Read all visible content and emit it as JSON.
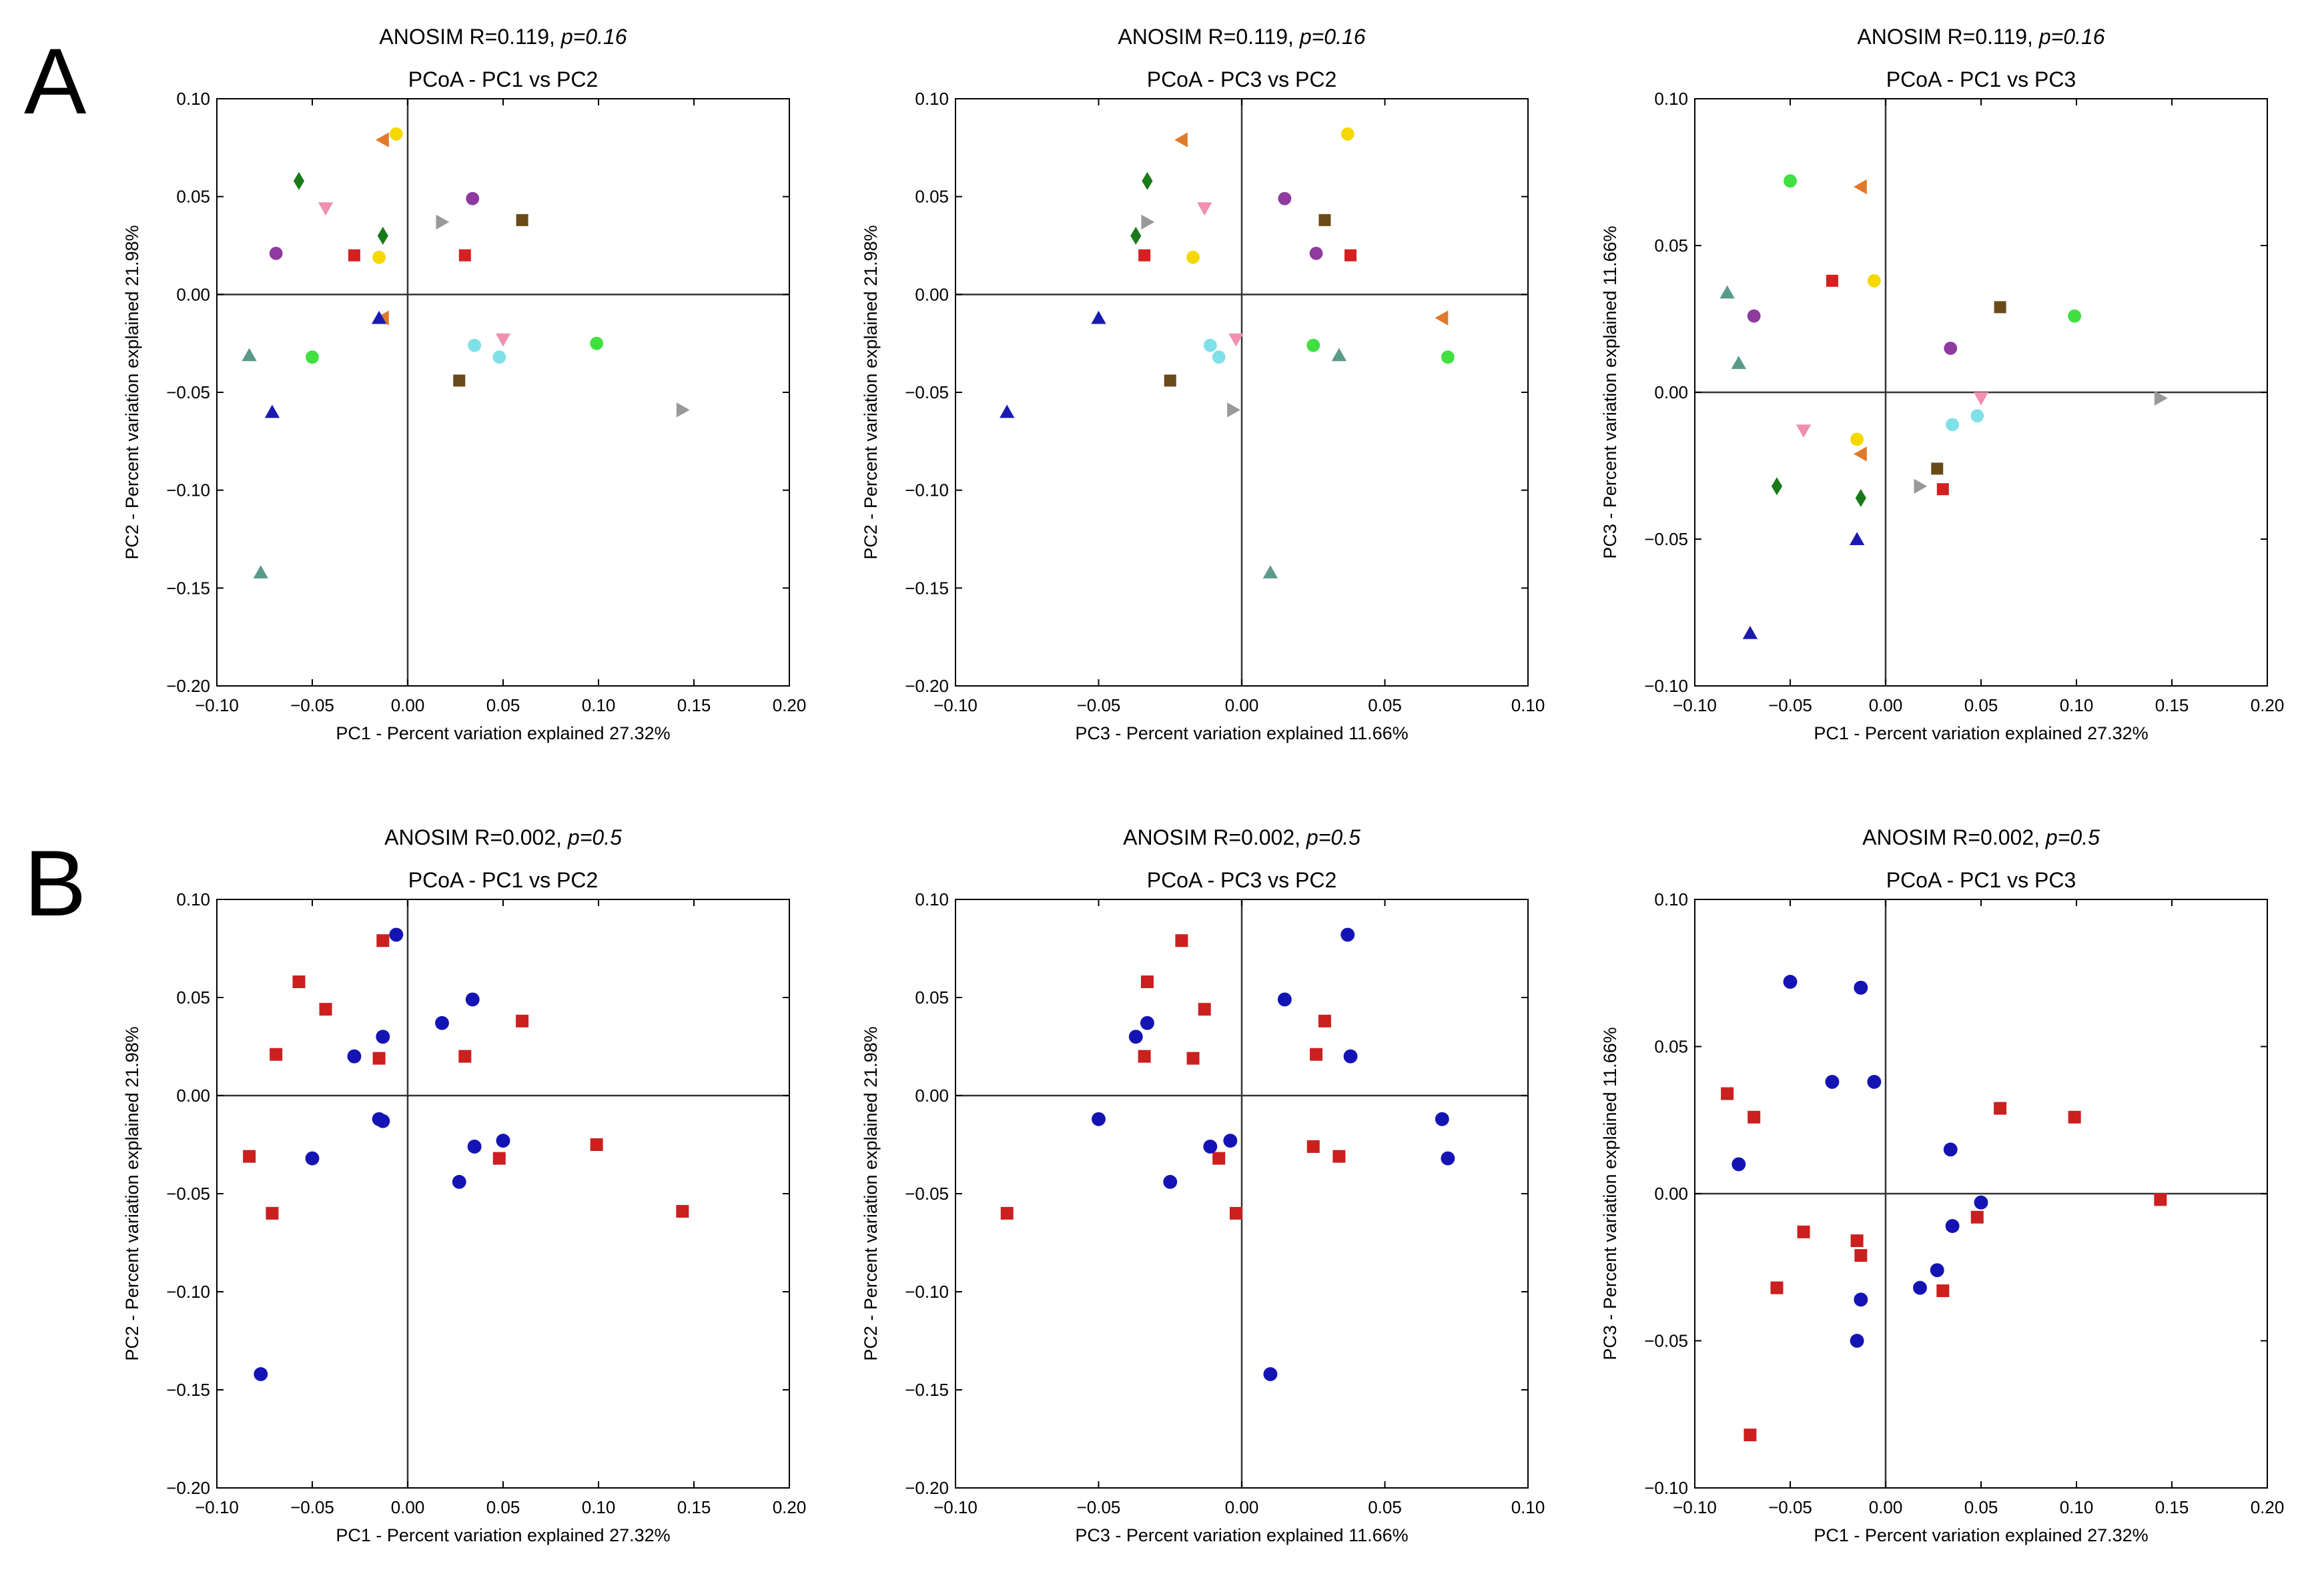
{
  "panel_labels": {
    "a": "A",
    "b": "B"
  },
  "chart_data": [
    {
      "panel": "A",
      "type": "scatter",
      "grouping": "samples",
      "subtitle": {
        "prefix": "ANOSIM R=0.119, ",
        "p": "p=0.16"
      },
      "title": "PCoA - PC1 vs PC2",
      "xlabel": "PC1 - Percent variation explained 27.32%",
      "ylabel": "PC2 - Percent variation explained 21.98%",
      "xlim": [
        -0.1,
        0.2
      ],
      "ylim": [
        -0.2,
        0.1
      ],
      "xticks": [
        "−0.10",
        "−0.05",
        "0.00",
        "0.05",
        "0.10",
        "0.15",
        "0.20"
      ],
      "yticks": [
        "0.10",
        "0.05",
        "0.00",
        "−0.05",
        "−0.10",
        "−0.15",
        "−0.20"
      ],
      "zero_lines": true,
      "points": [
        {
          "x": -0.057,
          "y": 0.058,
          "color": "#1a7a1a",
          "marker": "diamond"
        },
        {
          "x": -0.013,
          "y": 0.03,
          "color": "#1a7a1a",
          "marker": "diamond"
        },
        {
          "x": -0.043,
          "y": 0.044,
          "color": "#f08fb0",
          "marker": "tri-down"
        },
        {
          "x": 0.05,
          "y": -0.023,
          "color": "#f08fb0",
          "marker": "tri-down"
        },
        {
          "x": -0.069,
          "y": 0.021,
          "color": "#8e3a9e",
          "marker": "circle"
        },
        {
          "x": 0.034,
          "y": 0.049,
          "color": "#8e3a9e",
          "marker": "circle"
        },
        {
          "x": -0.013,
          "y": 0.079,
          "color": "#e07a2a",
          "marker": "tri-left"
        },
        {
          "x": -0.013,
          "y": -0.012,
          "color": "#e07a2a",
          "marker": "tri-left"
        },
        {
          "x": -0.006,
          "y": 0.082,
          "color": "#f5d800",
          "marker": "circle"
        },
        {
          "x": -0.015,
          "y": 0.019,
          "color": "#f5d800",
          "marker": "circle"
        },
        {
          "x": -0.028,
          "y": 0.02,
          "color": "#d42020",
          "marker": "square"
        },
        {
          "x": 0.03,
          "y": 0.02,
          "color": "#d42020",
          "marker": "square"
        },
        {
          "x": 0.018,
          "y": 0.037,
          "color": "#999999",
          "marker": "tri-right"
        },
        {
          "x": 0.144,
          "y": -0.059,
          "color": "#999999",
          "marker": "tri-right"
        },
        {
          "x": 0.06,
          "y": 0.038,
          "color": "#6b4a1a",
          "marker": "square"
        },
        {
          "x": 0.027,
          "y": -0.044,
          "color": "#6b4a1a",
          "marker": "square"
        },
        {
          "x": -0.083,
          "y": -0.031,
          "color": "#5a9a8a",
          "marker": "triangle"
        },
        {
          "x": -0.077,
          "y": -0.142,
          "color": "#5a9a8a",
          "marker": "triangle"
        },
        {
          "x": -0.05,
          "y": -0.032,
          "color": "#3fe03f",
          "marker": "circle"
        },
        {
          "x": 0.099,
          "y": -0.025,
          "color": "#3fe03f",
          "marker": "circle"
        },
        {
          "x": 0.035,
          "y": -0.026,
          "color": "#7fe0e8",
          "marker": "circle"
        },
        {
          "x": 0.048,
          "y": -0.032,
          "color": "#7fe0e8",
          "marker": "circle"
        },
        {
          "x": -0.071,
          "y": -0.06,
          "color": "#1a1ab0",
          "marker": "triangle"
        },
        {
          "x": -0.015,
          "y": -0.012,
          "color": "#1a1ab0",
          "marker": "triangle"
        }
      ]
    },
    {
      "panel": "A",
      "type": "scatter",
      "grouping": "samples",
      "subtitle": {
        "prefix": "ANOSIM R=0.119, ",
        "p": "p=0.16"
      },
      "title": "PCoA - PC3 vs PC2",
      "xlabel": "PC3 - Percent variation explained 11.66%",
      "ylabel": "PC2 - Percent variation explained 21.98%",
      "xlim": [
        -0.1,
        0.1
      ],
      "ylim": [
        -0.2,
        0.1
      ],
      "xticks": [
        "−0.10",
        "−0.05",
        "0.00",
        "0.05",
        "0.10"
      ],
      "yticks": [
        "0.10",
        "0.05",
        "0.00",
        "−0.05",
        "−0.10",
        "−0.15",
        "−0.20"
      ],
      "zero_lines": true,
      "points": [
        {
          "x": -0.033,
          "y": 0.058,
          "color": "#1a7a1a",
          "marker": "diamond"
        },
        {
          "x": -0.037,
          "y": 0.03,
          "color": "#1a7a1a",
          "marker": "diamond"
        },
        {
          "x": -0.013,
          "y": 0.044,
          "color": "#f08fb0",
          "marker": "tri-down"
        },
        {
          "x": -0.002,
          "y": -0.023,
          "color": "#f08fb0",
          "marker": "tri-down"
        },
        {
          "x": 0.015,
          "y": 0.049,
          "color": "#8e3a9e",
          "marker": "circle"
        },
        {
          "x": 0.026,
          "y": 0.021,
          "color": "#8e3a9e",
          "marker": "circle"
        },
        {
          "x": -0.021,
          "y": 0.079,
          "color": "#e07a2a",
          "marker": "tri-left"
        },
        {
          "x": 0.07,
          "y": -0.012,
          "color": "#e07a2a",
          "marker": "tri-left"
        },
        {
          "x": 0.037,
          "y": 0.082,
          "color": "#f5d800",
          "marker": "circle"
        },
        {
          "x": -0.017,
          "y": 0.019,
          "color": "#f5d800",
          "marker": "circle"
        },
        {
          "x": -0.034,
          "y": 0.02,
          "color": "#d42020",
          "marker": "square"
        },
        {
          "x": 0.038,
          "y": 0.02,
          "color": "#d42020",
          "marker": "square"
        },
        {
          "x": -0.033,
          "y": 0.037,
          "color": "#999999",
          "marker": "tri-right"
        },
        {
          "x": -0.003,
          "y": -0.059,
          "color": "#999999",
          "marker": "tri-right"
        },
        {
          "x": 0.029,
          "y": 0.038,
          "color": "#6b4a1a",
          "marker": "square"
        },
        {
          "x": -0.025,
          "y": -0.044,
          "color": "#6b4a1a",
          "marker": "square"
        },
        {
          "x": 0.034,
          "y": -0.031,
          "color": "#5a9a8a",
          "marker": "triangle"
        },
        {
          "x": 0.01,
          "y": -0.142,
          "color": "#5a9a8a",
          "marker": "triangle"
        },
        {
          "x": 0.072,
          "y": -0.032,
          "color": "#3fe03f",
          "marker": "circle"
        },
        {
          "x": 0.025,
          "y": -0.026,
          "color": "#3fe03f",
          "marker": "circle"
        },
        {
          "x": -0.011,
          "y": -0.026,
          "color": "#7fe0e8",
          "marker": "circle"
        },
        {
          "x": -0.008,
          "y": -0.032,
          "color": "#7fe0e8",
          "marker": "circle"
        },
        {
          "x": -0.082,
          "y": -0.06,
          "color": "#1a1ab0",
          "marker": "triangle"
        },
        {
          "x": -0.05,
          "y": -0.012,
          "color": "#1a1ab0",
          "marker": "triangle"
        }
      ]
    },
    {
      "panel": "A",
      "type": "scatter",
      "grouping": "samples",
      "subtitle": {
        "prefix": "ANOSIM R=0.119, ",
        "p": "p=0.16"
      },
      "title": "PCoA - PC1 vs PC3",
      "xlabel": "PC1 - Percent variation explained 27.32%",
      "ylabel": "PC3 - Percent variation explained 11.66%",
      "xlim": [
        -0.1,
        0.2
      ],
      "ylim": [
        -0.1,
        0.1
      ],
      "xticks": [
        "−0.10",
        "−0.05",
        "0.00",
        "0.05",
        "0.10",
        "0.15",
        "0.20"
      ],
      "yticks": [
        "0.10",
        "0.05",
        "0.00",
        "−0.05",
        "−0.10"
      ],
      "zero_lines": true,
      "points": [
        {
          "x": -0.057,
          "y": -0.032,
          "color": "#1a7a1a",
          "marker": "diamond"
        },
        {
          "x": -0.013,
          "y": -0.036,
          "color": "#1a7a1a",
          "marker": "diamond"
        },
        {
          "x": -0.043,
          "y": -0.013,
          "color": "#f08fb0",
          "marker": "tri-down"
        },
        {
          "x": 0.05,
          "y": -0.002,
          "color": "#f08fb0",
          "marker": "tri-down"
        },
        {
          "x": -0.069,
          "y": 0.026,
          "color": "#8e3a9e",
          "marker": "circle"
        },
        {
          "x": 0.034,
          "y": 0.015,
          "color": "#8e3a9e",
          "marker": "circle"
        },
        {
          "x": -0.013,
          "y": 0.07,
          "color": "#e07a2a",
          "marker": "tri-left"
        },
        {
          "x": -0.013,
          "y": -0.021,
          "color": "#e07a2a",
          "marker": "tri-left"
        },
        {
          "x": -0.006,
          "y": 0.038,
          "color": "#f5d800",
          "marker": "circle"
        },
        {
          "x": -0.015,
          "y": -0.016,
          "color": "#f5d800",
          "marker": "circle"
        },
        {
          "x": -0.028,
          "y": 0.038,
          "color": "#d42020",
          "marker": "square"
        },
        {
          "x": 0.03,
          "y": -0.033,
          "color": "#d42020",
          "marker": "square"
        },
        {
          "x": 0.018,
          "y": -0.032,
          "color": "#999999",
          "marker": "tri-right"
        },
        {
          "x": 0.144,
          "y": -0.002,
          "color": "#999999",
          "marker": "tri-right"
        },
        {
          "x": 0.06,
          "y": 0.029,
          "color": "#6b4a1a",
          "marker": "square"
        },
        {
          "x": 0.027,
          "y": -0.026,
          "color": "#6b4a1a",
          "marker": "square"
        },
        {
          "x": -0.083,
          "y": 0.034,
          "color": "#5a9a8a",
          "marker": "triangle"
        },
        {
          "x": -0.077,
          "y": 0.01,
          "color": "#5a9a8a",
          "marker": "triangle"
        },
        {
          "x": -0.05,
          "y": 0.072,
          "color": "#3fe03f",
          "marker": "circle"
        },
        {
          "x": 0.099,
          "y": 0.026,
          "color": "#3fe03f",
          "marker": "circle"
        },
        {
          "x": 0.035,
          "y": -0.011,
          "color": "#7fe0e8",
          "marker": "circle"
        },
        {
          "x": 0.048,
          "y": -0.008,
          "color": "#7fe0e8",
          "marker": "circle"
        },
        {
          "x": -0.071,
          "y": -0.082,
          "color": "#1a1ab0",
          "marker": "triangle"
        },
        {
          "x": -0.015,
          "y": -0.05,
          "color": "#1a1ab0",
          "marker": "triangle"
        }
      ]
    },
    {
      "panel": "B",
      "type": "scatter",
      "grouping": "groups",
      "subtitle": {
        "prefix": "ANOSIM R=0.002, ",
        "p": "p=0.5"
      },
      "title": "PCoA - PC1 vs PC2",
      "xlabel": "PC1 - Percent variation explained 27.32%",
      "ylabel": "PC2 - Percent variation explained 21.98%",
      "xlim": [
        -0.1,
        0.2
      ],
      "ylim": [
        -0.2,
        0.1
      ],
      "xticks": [
        "−0.10",
        "−0.05",
        "0.00",
        "0.05",
        "0.10",
        "0.15",
        "0.20"
      ],
      "yticks": [
        "0.10",
        "0.05",
        "0.00",
        "−0.05",
        "−0.10",
        "−0.15",
        "−0.20"
      ],
      "zero_lines": true,
      "series": [
        {
          "name": "group-red",
          "color": "#cc1f1f",
          "marker": "square",
          "points": [
            [
              -0.057,
              0.058
            ],
            [
              -0.043,
              0.044
            ],
            [
              -0.069,
              0.021
            ],
            [
              -0.013,
              0.079
            ],
            [
              -0.015,
              0.019
            ],
            [
              0.03,
              0.02
            ],
            [
              0.06,
              0.038
            ],
            [
              -0.083,
              -0.031
            ],
            [
              -0.071,
              -0.06
            ],
            [
              0.048,
              -0.032
            ],
            [
              0.099,
              -0.025
            ],
            [
              0.144,
              -0.059
            ]
          ]
        },
        {
          "name": "group-blue",
          "color": "#1414b4",
          "marker": "circle",
          "points": [
            [
              -0.006,
              0.082
            ],
            [
              -0.013,
              0.03
            ],
            [
              -0.028,
              0.02
            ],
            [
              0.018,
              0.037
            ],
            [
              0.034,
              0.049
            ],
            [
              -0.015,
              -0.012
            ],
            [
              -0.013,
              -0.013
            ],
            [
              0.035,
              -0.026
            ],
            [
              0.05,
              -0.023
            ],
            [
              0.027,
              -0.044
            ],
            [
              -0.05,
              -0.032
            ],
            [
              -0.077,
              -0.142
            ]
          ]
        }
      ]
    },
    {
      "panel": "B",
      "type": "scatter",
      "grouping": "groups",
      "subtitle": {
        "prefix": "ANOSIM R=0.002, ",
        "p": "p=0.5"
      },
      "title": "PCoA - PC3 vs PC2",
      "xlabel": "PC3 - Percent variation explained 11.66%",
      "ylabel": "PC2 - Percent variation explained 21.98%",
      "xlim": [
        -0.1,
        0.1
      ],
      "ylim": [
        -0.2,
        0.1
      ],
      "xticks": [
        "−0.10",
        "−0.05",
        "0.00",
        "0.05",
        "0.10"
      ],
      "yticks": [
        "0.10",
        "0.05",
        "0.00",
        "−0.05",
        "−0.10",
        "−0.15",
        "−0.20"
      ],
      "zero_lines": true,
      "series": [
        {
          "name": "group-red",
          "color": "#cc1f1f",
          "marker": "square",
          "points": [
            [
              -0.033,
              0.058
            ],
            [
              -0.013,
              0.044
            ],
            [
              -0.021,
              0.079
            ],
            [
              -0.034,
              0.02
            ],
            [
              -0.017,
              0.019
            ],
            [
              0.029,
              0.038
            ],
            [
              0.026,
              0.021
            ],
            [
              0.025,
              -0.026
            ],
            [
              0.034,
              -0.031
            ],
            [
              -0.008,
              -0.032
            ],
            [
              -0.002,
              -0.06
            ],
            [
              -0.082,
              -0.06
            ]
          ]
        },
        {
          "name": "group-blue",
          "color": "#1414b4",
          "marker": "circle",
          "points": [
            [
              -0.033,
              0.037
            ],
            [
              -0.037,
              0.03
            ],
            [
              0.015,
              0.049
            ],
            [
              0.037,
              0.082
            ],
            [
              0.038,
              0.02
            ],
            [
              -0.05,
              -0.012
            ],
            [
              -0.011,
              -0.026
            ],
            [
              -0.004,
              -0.023
            ],
            [
              -0.025,
              -0.044
            ],
            [
              0.07,
              -0.012
            ],
            [
              0.072,
              -0.032
            ],
            [
              0.01,
              -0.142
            ]
          ]
        }
      ]
    },
    {
      "panel": "B",
      "type": "scatter",
      "grouping": "groups",
      "subtitle": {
        "prefix": "ANOSIM R=0.002, ",
        "p": "p=0.5"
      },
      "title": "PCoA - PC1 vs PC3",
      "xlabel": "PC1 - Percent variation explained 27.32%",
      "ylabel": "PC3 - Percent variation explained 11.66%",
      "xlim": [
        -0.1,
        0.2
      ],
      "ylim": [
        -0.1,
        0.1
      ],
      "xticks": [
        "−0.10",
        "−0.05",
        "0.00",
        "0.05",
        "0.10",
        "0.15",
        "0.20"
      ],
      "yticks": [
        "0.10",
        "0.05",
        "0.00",
        "−0.05",
        "−0.10"
      ],
      "zero_lines": true,
      "series": [
        {
          "name": "group-red",
          "color": "#cc1f1f",
          "marker": "square",
          "points": [
            [
              -0.083,
              0.034
            ],
            [
              -0.069,
              0.026
            ],
            [
              -0.043,
              -0.013
            ],
            [
              -0.057,
              -0.032
            ],
            [
              -0.015,
              -0.016
            ],
            [
              -0.013,
              -0.021
            ],
            [
              0.03,
              -0.033
            ],
            [
              0.048,
              -0.008
            ],
            [
              0.06,
              0.029
            ],
            [
              0.099,
              0.026
            ],
            [
              0.144,
              -0.002
            ],
            [
              -0.071,
              -0.082
            ]
          ]
        },
        {
          "name": "group-blue",
          "color": "#1414b4",
          "marker": "circle",
          "points": [
            [
              -0.05,
              0.072
            ],
            [
              -0.013,
              0.07
            ],
            [
              -0.028,
              0.038
            ],
            [
              -0.006,
              0.038
            ],
            [
              -0.077,
              0.01
            ],
            [
              0.034,
              0.015
            ],
            [
              0.05,
              -0.003
            ],
            [
              0.035,
              -0.011
            ],
            [
              0.027,
              -0.026
            ],
            [
              0.018,
              -0.032
            ],
            [
              -0.013,
              -0.036
            ],
            [
              -0.015,
              -0.05
            ]
          ]
        }
      ]
    }
  ]
}
